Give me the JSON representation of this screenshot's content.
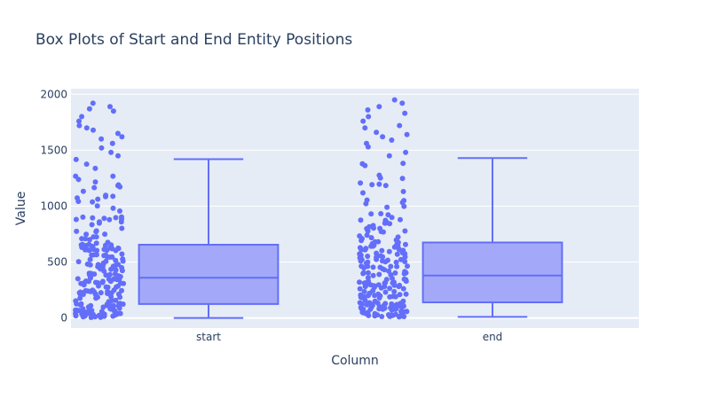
{
  "chart_data": {
    "type": "box",
    "title": "Box Plots of Start and End Entity Positions",
    "xlabel": "Column",
    "ylabel": "Value",
    "categories": [
      "start",
      "end"
    ],
    "ylim": [
      -90,
      2050
    ],
    "yticks": [
      0,
      500,
      1000,
      1500,
      2000
    ],
    "grid": true,
    "colors": {
      "plot_bg": "#e5ecf6",
      "grid": "#ffffff",
      "box_line": "#636efa",
      "box_fill": "#a3a9f8",
      "points": "#636efa",
      "text": "#2a3f5f"
    },
    "boxes": [
      {
        "name": "start",
        "min": 0,
        "q1": 125,
        "median": 360,
        "q3": 655,
        "max": 1420
      },
      {
        "name": "end",
        "min": 10,
        "q1": 140,
        "median": 380,
        "q3": 675,
        "max": 1430
      }
    ],
    "outliers": {
      "start": [
        1450,
        1480,
        1520,
        1560,
        1600,
        1620,
        1650,
        1680,
        1700,
        1720,
        1760,
        1800,
        1850,
        1870,
        1890,
        1920
      ],
      "end": [
        1450,
        1480,
        1530,
        1560,
        1590,
        1620,
        1640,
        1660,
        1700,
        1720,
        1760,
        1800,
        1830,
        1860,
        1890,
        1920,
        1950
      ]
    }
  }
}
